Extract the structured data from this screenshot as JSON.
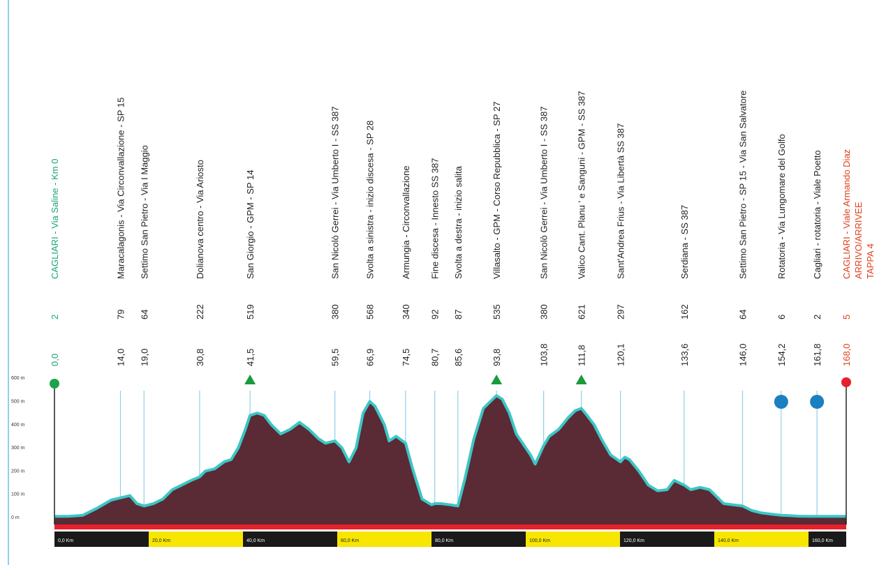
{
  "colors": {
    "profile_fill": "#5a2a35",
    "profile_stroke": "#3cc6c6",
    "start_marker": "#1aa34a",
    "finish_marker": "#e8202a",
    "gpm_marker": "#1a9a3a",
    "roundabout_marker": "#1c7fc0",
    "red_band": "#e8202a",
    "km_dark": "#1a1a1a",
    "km_yellow": "#f7e600",
    "start_text": "#1aa37a",
    "finish_text": "#e0401c",
    "guide_line": "#8fd0e8"
  },
  "chart_data": {
    "type": "area",
    "title": "",
    "xlabel": "",
    "ylabel": "",
    "xlim": [
      0,
      168
    ],
    "ylim": [
      -50,
      600
    ],
    "y_ticks": [
      "0 m",
      "100 m",
      "200 m",
      "300 m",
      "400 m",
      "500 m",
      "600 m"
    ],
    "y_tick_values": [
      0,
      100,
      200,
      300,
      400,
      500,
      600
    ],
    "km_segments": [
      {
        "label": "0,0 Km",
        "style": "dark"
      },
      {
        "label": "20,0 Km",
        "style": "yellow"
      },
      {
        "label": "40,0 Km",
        "style": "dark"
      },
      {
        "label": "60,0 Km",
        "style": "yellow"
      },
      {
        "label": "80,0 Km",
        "style": "dark"
      },
      {
        "label": "100,0 Km",
        "style": "yellow"
      },
      {
        "label": "120,0 Km",
        "style": "dark"
      },
      {
        "label": "140,0 Km",
        "style": "yellow"
      },
      {
        "label": "160,0 Km",
        "style": "dark"
      }
    ],
    "profile": {
      "x": [
        0,
        3,
        6,
        9,
        12,
        14,
        16,
        17.5,
        19,
        21,
        23,
        25,
        27,
        29,
        30.8,
        32,
        34,
        36,
        37.5,
        39,
        40.5,
        41.5,
        43,
        44.5,
        46,
        48,
        50,
        52,
        54,
        56,
        57.5,
        59.5,
        61,
        62.5,
        64,
        65.5,
        66.9,
        68,
        70,
        71,
        72.5,
        74.5,
        76,
        78,
        80,
        80.7,
        82,
        84,
        85.6,
        87,
        89,
        91,
        92.5,
        93.8,
        95,
        96.5,
        98,
        100,
        101,
        102,
        103.8,
        105,
        107,
        109,
        110.5,
        111.8,
        113,
        114.5,
        116,
        118,
        120.1,
        121,
        122,
        124,
        126,
        128,
        130,
        131.5,
        133.6,
        135,
        137,
        139,
        140.5,
        142,
        144,
        146,
        148,
        150,
        152,
        154.2,
        156,
        158,
        160,
        161.8,
        164,
        166,
        168
      ],
      "y": [
        5,
        5,
        10,
        40,
        75,
        85,
        95,
        60,
        50,
        60,
        80,
        120,
        140,
        160,
        175,
        200,
        210,
        240,
        250,
        300,
        380,
        440,
        450,
        440,
        400,
        360,
        380,
        410,
        380,
        340,
        320,
        330,
        300,
        240,
        300,
        450,
        500,
        480,
        400,
        330,
        350,
        320,
        210,
        80,
        55,
        60,
        60,
        55,
        50,
        160,
        340,
        470,
        500,
        525,
        510,
        450,
        360,
        300,
        270,
        230,
        310,
        350,
        380,
        430,
        460,
        470,
        440,
        400,
        340,
        270,
        240,
        260,
        250,
        200,
        140,
        115,
        120,
        160,
        140,
        120,
        130,
        120,
        90,
        60,
        55,
        50,
        30,
        20,
        15,
        10,
        8,
        6,
        5,
        5,
        5,
        5,
        5
      ]
    },
    "locations": [
      {
        "km": "0,0",
        "alt": "2",
        "name": "CAGLIARI - Via Saline - Km 0",
        "kind": "start"
      },
      {
        "km": "14,0",
        "alt": "79",
        "name": "Maracalagonis - Via Circonvallazione - SP 15",
        "kind": "normal"
      },
      {
        "km": "19,0",
        "alt": "64",
        "name": "Settimo San Pietro - Via I Maggio",
        "kind": "normal"
      },
      {
        "km": "30,8",
        "alt": "222",
        "name": "Dolianova centro - Via Ariosto",
        "kind": "normal"
      },
      {
        "km": "41,5",
        "alt": "519",
        "name": "San Giorgio - GPM - SP 14",
        "kind": "gpm"
      },
      {
        "km": "59,5",
        "alt": "380",
        "name": "San Nicolò Gerrei - Via Umberto I - SS 387",
        "kind": "normal"
      },
      {
        "km": "66,9",
        "alt": "568",
        "name": "Svolta a sinistra - inizio discesa - SP 28",
        "kind": "normal"
      },
      {
        "km": "74,5",
        "alt": "340",
        "name": "Armungia - Circonvallazione",
        "kind": "normal"
      },
      {
        "km": "80,7",
        "alt": "92",
        "name": "Fine discesa - Innesto SS 387",
        "kind": "normal"
      },
      {
        "km": "85,6",
        "alt": "87",
        "name": "Svolta a destra - inizio salita",
        "kind": "normal"
      },
      {
        "km": "93,8",
        "alt": "535",
        "name": "Villasalto - GPM - Corso Repubblica - SP 27",
        "kind": "gpm"
      },
      {
        "km": "103,8",
        "alt": "380",
        "name": "San Nicolò Gerrei - Via Umberto I - SS 387",
        "kind": "normal"
      },
      {
        "km": "111,8",
        "alt": "621",
        "name": "Valico Cant. Planu ' e Sanguni - GPM - SS 387",
        "kind": "gpm"
      },
      {
        "km": "120,1",
        "alt": "297",
        "name": "Sant'Andrea Frius - Via Libertà SS 387",
        "kind": "normal"
      },
      {
        "km": "133,6",
        "alt": "162",
        "name": "Serdiana - SS 387",
        "kind": "normal"
      },
      {
        "km": "146,0",
        "alt": "64",
        "name": "Settimo San Pietro - SP 15 - Via San Salvatore",
        "kind": "normal"
      },
      {
        "km": "154,2",
        "alt": "6",
        "name": "Rotatoria - Via Lungomare del Golfo",
        "kind": "roundabout"
      },
      {
        "km": "161,8",
        "alt": "2",
        "name": "Cagliari - rotatoria - Viale Poetto",
        "kind": "roundabout"
      },
      {
        "km": "168,0",
        "alt": "5",
        "name": "CAGLIARI - Viale Armando Diaz ARRIVO/ARRIVEE TAPPA 4",
        "kind": "finish"
      }
    ]
  }
}
